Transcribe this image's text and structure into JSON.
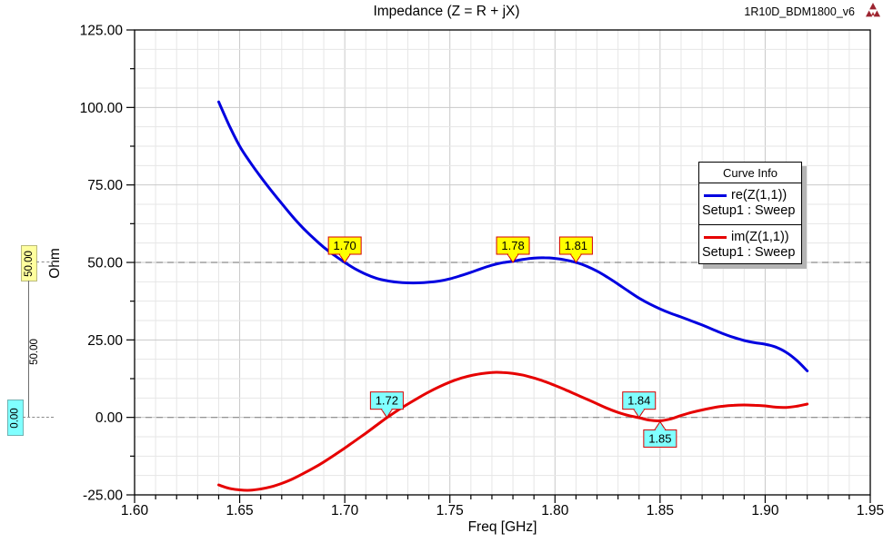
{
  "header": {
    "title": "Impedance (Z = R + jX)",
    "doc_label": "1R10D_BDM1800_v6",
    "logo_color": "#9c2430"
  },
  "axes": {
    "x": {
      "label": "Freq [GHz]",
      "tick_labels": [
        "1.60",
        "1.65",
        "1.70",
        "1.75",
        "1.80",
        "1.85",
        "1.90",
        "1.95"
      ]
    },
    "y": {
      "label": "Ohm",
      "tick_labels": [
        "125.00",
        "100.00",
        "75.00",
        "50.00",
        "25.00",
        "0.00",
        "-25.00"
      ]
    }
  },
  "ref_lines": [
    {
      "value": 50,
      "label": "50.00",
      "tag_color": "#ffff9e"
    },
    {
      "value": 0,
      "label": "0.00",
      "tag_color": "#80ffff"
    }
  ],
  "delta_label": "50.00",
  "legend": {
    "title": "Curve Info",
    "entries": [
      {
        "label": "re(Z(1,1))",
        "sub": "Setup1 : Sweep",
        "color": "#0000e0"
      },
      {
        "label": "im(Z(1,1))",
        "sub": "Setup1 : Sweep",
        "color": "#e60000"
      }
    ]
  },
  "chart_data": {
    "type": "line",
    "title": "Impedance (Z = R + jX)",
    "xlabel": "Freq [GHz]",
    "ylabel": "Ohm",
    "xlim": [
      1.6,
      1.95
    ],
    "ylim": [
      -25,
      125
    ],
    "x_major_step": 0.05,
    "x_minor_step": 0.01,
    "y_major_step": 25,
    "y_grid_step": 6.25,
    "grid": true,
    "legend_position": "right",
    "reference_lines_y": [
      50,
      0
    ],
    "colors": {
      "grid_minor": "#e6e6e6",
      "grid_major": "#c9c9c9",
      "ref_dash": "#8a8a8a",
      "marker_border": "#d40000",
      "marker_yellow": "#ffff00",
      "marker_cyan": "#80ffff"
    },
    "series": [
      {
        "name": "re(Z(1,1))",
        "setup": "Setup1 : Sweep",
        "color": "#0000e0",
        "points": [
          [
            1.64,
            101.8
          ],
          [
            1.645,
            94.2
          ],
          [
            1.65,
            87.5
          ],
          [
            1.655,
            82.3
          ],
          [
            1.66,
            77.6
          ],
          [
            1.665,
            73.2
          ],
          [
            1.67,
            69.0
          ],
          [
            1.675,
            64.9
          ],
          [
            1.68,
            61.2
          ],
          [
            1.685,
            57.9
          ],
          [
            1.69,
            54.9
          ],
          [
            1.695,
            52.3
          ],
          [
            1.7,
            50.0
          ],
          [
            1.705,
            47.9
          ],
          [
            1.71,
            46.2
          ],
          [
            1.715,
            44.9
          ],
          [
            1.72,
            44.1
          ],
          [
            1.725,
            43.6
          ],
          [
            1.73,
            43.4
          ],
          [
            1.735,
            43.4
          ],
          [
            1.74,
            43.6
          ],
          [
            1.745,
            44.0
          ],
          [
            1.75,
            44.7
          ],
          [
            1.755,
            45.7
          ],
          [
            1.76,
            46.8
          ],
          [
            1.765,
            48.0
          ],
          [
            1.77,
            49.1
          ],
          [
            1.775,
            49.9
          ],
          [
            1.78,
            50.4
          ],
          [
            1.785,
            51.0
          ],
          [
            1.79,
            51.4
          ],
          [
            1.795,
            51.5
          ],
          [
            1.8,
            51.3
          ],
          [
            1.805,
            50.8
          ],
          [
            1.81,
            50.0
          ],
          [
            1.815,
            48.8
          ],
          [
            1.82,
            47.2
          ],
          [
            1.825,
            45.2
          ],
          [
            1.83,
            43.0
          ],
          [
            1.835,
            40.7
          ],
          [
            1.84,
            38.5
          ],
          [
            1.845,
            36.6
          ],
          [
            1.85,
            35.0
          ],
          [
            1.855,
            33.6
          ],
          [
            1.86,
            32.4
          ],
          [
            1.865,
            31.1
          ],
          [
            1.87,
            29.8
          ],
          [
            1.875,
            28.4
          ],
          [
            1.88,
            27.0
          ],
          [
            1.885,
            25.8
          ],
          [
            1.89,
            24.8
          ],
          [
            1.895,
            24.1
          ],
          [
            1.9,
            23.6
          ],
          [
            1.905,
            22.7
          ],
          [
            1.91,
            21.0
          ],
          [
            1.915,
            18.4
          ],
          [
            1.92,
            15.0
          ]
        ]
      },
      {
        "name": "im(Z(1,1))",
        "setup": "Setup1 : Sweep",
        "color": "#e60000",
        "points": [
          [
            1.64,
            -21.8
          ],
          [
            1.645,
            -22.9
          ],
          [
            1.65,
            -23.4
          ],
          [
            1.655,
            -23.5
          ],
          [
            1.66,
            -23.1
          ],
          [
            1.665,
            -22.4
          ],
          [
            1.67,
            -21.3
          ],
          [
            1.675,
            -19.9
          ],
          [
            1.68,
            -18.2
          ],
          [
            1.685,
            -16.4
          ],
          [
            1.69,
            -14.4
          ],
          [
            1.695,
            -12.2
          ],
          [
            1.7,
            -9.9
          ],
          [
            1.705,
            -7.5
          ],
          [
            1.71,
            -5.1
          ],
          [
            1.715,
            -2.6
          ],
          [
            1.72,
            -0.1
          ],
          [
            1.725,
            2.2
          ],
          [
            1.73,
            4.3
          ],
          [
            1.735,
            6.3
          ],
          [
            1.74,
            8.2
          ],
          [
            1.745,
            9.9
          ],
          [
            1.75,
            11.4
          ],
          [
            1.755,
            12.6
          ],
          [
            1.76,
            13.5
          ],
          [
            1.765,
            14.1
          ],
          [
            1.77,
            14.5
          ],
          [
            1.775,
            14.5
          ],
          [
            1.78,
            14.2
          ],
          [
            1.785,
            13.6
          ],
          [
            1.79,
            12.7
          ],
          [
            1.795,
            11.6
          ],
          [
            1.8,
            10.3
          ],
          [
            1.805,
            8.9
          ],
          [
            1.81,
            7.4
          ],
          [
            1.815,
            5.9
          ],
          [
            1.82,
            4.4
          ],
          [
            1.825,
            2.9
          ],
          [
            1.83,
            1.6
          ],
          [
            1.835,
            0.6
          ],
          [
            1.84,
            -0.1
          ],
          [
            1.845,
            -0.9
          ],
          [
            1.85,
            -1.1
          ],
          [
            1.855,
            -0.5
          ],
          [
            1.86,
            0.6
          ],
          [
            1.865,
            1.6
          ],
          [
            1.87,
            2.4
          ],
          [
            1.875,
            3.1
          ],
          [
            1.88,
            3.6
          ],
          [
            1.885,
            3.9
          ],
          [
            1.89,
            4.0
          ],
          [
            1.895,
            3.9
          ],
          [
            1.9,
            3.7
          ],
          [
            1.905,
            3.3
          ],
          [
            1.91,
            3.2
          ],
          [
            1.915,
            3.6
          ],
          [
            1.92,
            4.3
          ]
        ]
      }
    ],
    "markers": [
      {
        "series": "re(Z(1,1))",
        "freq": 1.7,
        "value": 50,
        "label": "1.70",
        "fill": "#ffff00",
        "dir": "down"
      },
      {
        "series": "re(Z(1,1))",
        "freq": 1.78,
        "value": 50,
        "label": "1.78",
        "fill": "#ffff00",
        "dir": "down"
      },
      {
        "series": "re(Z(1,1))",
        "freq": 1.81,
        "value": 50,
        "label": "1.81",
        "fill": "#ffff00",
        "dir": "down"
      },
      {
        "series": "im(Z(1,1))",
        "freq": 1.72,
        "value": 0,
        "label": "1.72",
        "fill": "#80ffff",
        "dir": "down"
      },
      {
        "series": "im(Z(1,1))",
        "freq": 1.84,
        "value": 0,
        "label": "1.84",
        "fill": "#80ffff",
        "dir": "down"
      },
      {
        "series": "im(Z(1,1))",
        "freq": 1.85,
        "value": -1.1,
        "label": "1.85",
        "fill": "#80ffff",
        "dir": "up"
      }
    ]
  }
}
